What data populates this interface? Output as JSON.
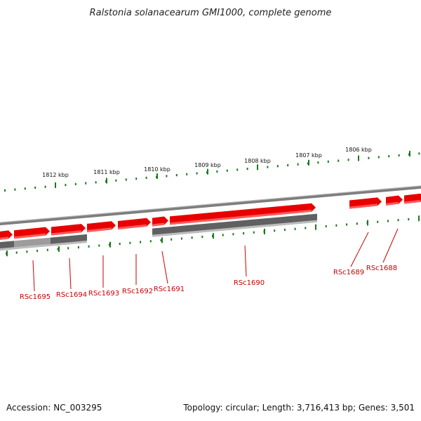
{
  "title": "Ralstonia solanacearum GMI1000, complete genome",
  "colors": {
    "gene_forward": "#e80000",
    "gene_forward_light": "#ff5a5a",
    "gene_reverse": "#606060",
    "gene_reverse_light": "#9c9c9c",
    "tick_green": "#1d7a1d",
    "label_red": "#c80000",
    "backbone": "#8a8a8a"
  },
  "kbp_ticks": [
    "1812 kbp",
    "1811 kbp",
    "1810 kbp",
    "1809 kbp",
    "1808 kbp",
    "1807 kbp",
    "1806 kbp"
  ],
  "genes": [
    {
      "label": "RSc1695"
    },
    {
      "label": "RSc1694"
    },
    {
      "label": "RSc1693"
    },
    {
      "label": "RSc1692"
    },
    {
      "label": "RSc1691"
    },
    {
      "label": "RSc1690"
    },
    {
      "label": "RSc1689"
    },
    {
      "label": "RSc1688"
    }
  ],
  "footer": {
    "accession": "Accession: NC_003295",
    "summary": "Topology: circular; Length: 3,716,413 bp; Genes: 3,501"
  }
}
